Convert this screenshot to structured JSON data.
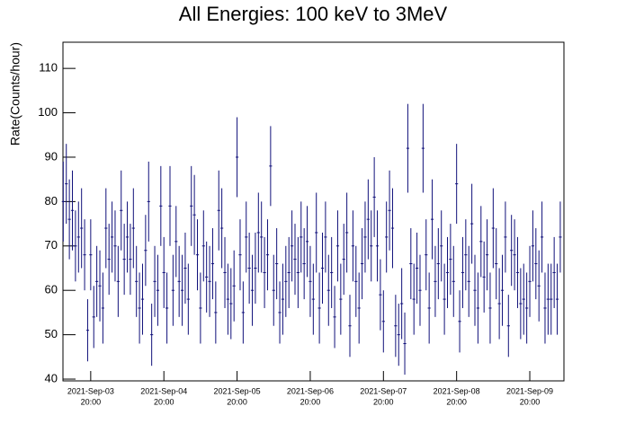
{
  "chart_data": {
    "type": "errorbar",
    "title": "All Energies:  100 keV to 3MeV",
    "ylabel": "Rate(Counts/hour)",
    "color": "#10107a",
    "x": [
      "2021-09-03 11:00",
      "2021-09-03 12:00",
      "2021-09-03 13:00",
      "2021-09-03 14:00",
      "2021-09-03 15:00",
      "2021-09-03 16:00",
      "2021-09-03 17:00",
      "2021-09-03 18:00",
      "2021-09-03 19:00",
      "2021-09-03 20:00",
      "2021-09-03 21:00",
      "2021-09-03 22:00",
      "2021-09-03 23:00",
      "2021-09-04 00:00",
      "2021-09-04 01:00",
      "2021-09-04 02:00",
      "2021-09-04 03:00",
      "2021-09-04 04:00",
      "2021-09-04 05:00",
      "2021-09-04 06:00",
      "2021-09-04 07:00",
      "2021-09-04 08:00",
      "2021-09-04 09:00",
      "2021-09-04 10:00",
      "2021-09-04 11:00",
      "2021-09-04 12:00",
      "2021-09-04 13:00",
      "2021-09-04 14:00",
      "2021-09-04 15:00",
      "2021-09-04 16:00",
      "2021-09-04 17:00",
      "2021-09-04 18:00",
      "2021-09-04 19:00",
      "2021-09-04 20:00",
      "2021-09-04 21:00",
      "2021-09-04 22:00",
      "2021-09-04 23:00",
      "2021-09-05 00:00",
      "2021-09-05 01:00",
      "2021-09-05 02:00",
      "2021-09-05 03:00",
      "2021-09-05 04:00",
      "2021-09-05 05:00",
      "2021-09-05 06:00",
      "2021-09-05 07:00",
      "2021-09-05 08:00",
      "2021-09-05 09:00",
      "2021-09-05 10:00",
      "2021-09-05 11:00",
      "2021-09-05 12:00",
      "2021-09-05 13:00",
      "2021-09-05 14:00",
      "2021-09-05 15:00",
      "2021-09-05 16:00",
      "2021-09-05 17:00",
      "2021-09-05 18:00",
      "2021-09-05 19:00",
      "2021-09-05 20:00",
      "2021-09-05 21:00",
      "2021-09-05 22:00",
      "2021-09-05 23:00",
      "2021-09-06 00:00",
      "2021-09-06 01:00",
      "2021-09-06 02:00",
      "2021-09-06 03:00",
      "2021-09-06 04:00",
      "2021-09-06 05:00",
      "2021-09-06 06:00",
      "2021-09-06 07:00",
      "2021-09-06 08:00",
      "2021-09-06 09:00",
      "2021-09-06 10:00",
      "2021-09-06 11:00",
      "2021-09-06 12:00",
      "2021-09-06 13:00",
      "2021-09-06 14:00",
      "2021-09-06 15:00",
      "2021-09-06 16:00",
      "2021-09-06 17:00",
      "2021-09-06 18:00",
      "2021-09-06 19:00",
      "2021-09-06 20:00",
      "2021-09-06 21:00",
      "2021-09-06 22:00",
      "2021-09-06 23:00",
      "2021-09-07 00:00",
      "2021-09-07 01:00",
      "2021-09-07 02:00",
      "2021-09-07 03:00",
      "2021-09-07 04:00",
      "2021-09-07 05:00",
      "2021-09-07 06:00",
      "2021-09-07 07:00",
      "2021-09-07 08:00",
      "2021-09-07 09:00",
      "2021-09-07 10:00",
      "2021-09-07 11:00",
      "2021-09-07 12:00",
      "2021-09-07 13:00",
      "2021-09-07 14:00",
      "2021-09-07 15:00",
      "2021-09-07 16:00",
      "2021-09-07 17:00",
      "2021-09-07 18:00",
      "2021-09-07 19:00",
      "2021-09-07 20:00",
      "2021-09-07 21:00",
      "2021-09-07 22:00",
      "2021-09-07 23:00",
      "2021-09-08 00:00",
      "2021-09-08 01:00",
      "2021-09-08 02:00",
      "2021-09-08 03:00",
      "2021-09-08 04:00",
      "2021-09-08 05:00",
      "2021-09-08 06:00",
      "2021-09-08 07:00",
      "2021-09-08 08:00",
      "2021-09-08 09:00",
      "2021-09-08 10:00",
      "2021-09-08 11:00",
      "2021-09-08 12:00",
      "2021-09-08 13:00",
      "2021-09-08 14:00",
      "2021-09-08 15:00",
      "2021-09-08 16:00",
      "2021-09-08 17:00",
      "2021-09-08 18:00",
      "2021-09-08 19:00",
      "2021-09-08 20:00",
      "2021-09-08 21:00",
      "2021-09-08 22:00",
      "2021-09-08 23:00",
      "2021-09-09 00:00",
      "2021-09-09 01:00",
      "2021-09-09 02:00",
      "2021-09-09 03:00",
      "2021-09-09 04:00",
      "2021-09-09 05:00",
      "2021-09-09 06:00",
      "2021-09-09 07:00",
      "2021-09-09 08:00",
      "2021-09-09 09:00",
      "2021-09-09 10:00",
      "2021-09-09 11:00",
      "2021-09-09 12:00",
      "2021-09-09 13:00",
      "2021-09-09 14:00",
      "2021-09-09 15:00",
      "2021-09-09 16:00",
      "2021-09-09 17:00",
      "2021-09-09 18:00",
      "2021-09-09 19:00",
      "2021-09-09 20:00",
      "2021-09-09 21:00",
      "2021-09-09 22:00",
      "2021-09-09 23:00",
      "2021-09-10 00:00",
      "2021-09-10 01:00",
      "2021-09-10 02:00",
      "2021-09-10 03:00",
      "2021-09-10 04:00",
      "2021-09-10 05:00",
      "2021-09-10 06:00"
    ],
    "values": [
      80,
      84,
      76,
      78,
      70,
      72,
      74,
      68,
      51,
      68,
      54,
      62,
      61,
      56,
      74,
      67,
      72,
      70,
      62,
      78,
      67,
      72,
      67,
      74,
      62,
      56,
      58,
      69,
      80,
      50,
      62,
      60,
      79,
      64,
      56,
      79,
      60,
      71,
      62,
      60,
      65,
      58,
      79,
      77,
      68,
      56,
      70,
      63,
      62,
      66,
      55,
      78,
      74,
      64,
      58,
      57,
      61,
      90,
      68,
      55,
      72,
      65,
      60,
      65,
      73,
      72,
      64,
      68,
      88,
      60,
      66,
      55,
      58,
      62,
      64,
      70,
      67,
      64,
      72,
      66,
      71,
      62,
      58,
      73,
      56,
      65,
      72,
      60,
      64,
      54,
      70,
      58,
      67,
      73,
      52,
      70,
      62,
      56,
      66,
      72,
      76,
      70,
      81,
      70,
      59,
      53,
      72,
      78,
      74,
      52,
      50,
      57,
      48,
      92,
      66,
      58,
      65,
      60,
      92,
      68,
      56,
      76,
      62,
      66,
      70,
      58,
      64,
      67,
      62,
      84,
      53,
      64,
      68,
      62,
      75,
      60,
      56,
      71,
      63,
      68,
      56,
      74,
      66,
      57,
      60,
      72,
      52,
      69,
      68,
      64,
      57,
      58,
      56,
      62,
      70,
      66,
      61,
      72,
      56,
      58,
      58,
      64,
      58,
      72
    ],
    "errors": [
      9,
      9,
      9,
      9,
      8,
      8,
      9,
      8,
      7,
      8,
      7,
      8,
      8,
      8,
      9,
      8,
      8,
      8,
      8,
      9,
      8,
      8,
      8,
      9,
      8,
      8,
      8,
      8,
      9,
      7,
      8,
      8,
      9,
      8,
      8,
      9,
      8,
      8,
      8,
      8,
      8,
      8,
      9,
      9,
      8,
      8,
      8,
      8,
      8,
      8,
      7,
      9,
      9,
      8,
      8,
      8,
      8,
      9,
      8,
      7,
      8,
      8,
      8,
      8,
      9,
      8,
      8,
      8,
      9,
      8,
      8,
      7,
      8,
      8,
      8,
      8,
      8,
      8,
      8,
      8,
      8,
      8,
      8,
      9,
      8,
      8,
      8,
      8,
      8,
      7,
      8,
      8,
      8,
      9,
      7,
      8,
      8,
      8,
      8,
      8,
      9,
      8,
      9,
      8,
      8,
      7,
      8,
      9,
      9,
      7,
      7,
      8,
      7,
      10,
      8,
      8,
      8,
      8,
      10,
      8,
      8,
      9,
      8,
      8,
      8,
      8,
      8,
      8,
      8,
      9,
      7,
      8,
      8,
      8,
      9,
      8,
      8,
      8,
      8,
      8,
      8,
      9,
      8,
      8,
      8,
      8,
      7,
      8,
      8,
      8,
      8,
      8,
      8,
      8,
      8,
      8,
      8,
      8,
      8,
      8,
      8,
      8,
      8,
      8
    ],
    "xlim": [
      "2021-09-03 10:54",
      "2021-09-10 07:12"
    ],
    "xticks": [
      {
        "value": "2021-09-03 20:00",
        "label": [
          "2021-Sep-03",
          "20:00"
        ]
      },
      {
        "value": "2021-09-04 20:00",
        "label": [
          "2021-Sep-04",
          "20:00"
        ]
      },
      {
        "value": "2021-09-05 20:00",
        "label": [
          "2021-Sep-05",
          "20:00"
        ]
      },
      {
        "value": "2021-09-06 20:00",
        "label": [
          "2021-Sep-06",
          "20:00"
        ]
      },
      {
        "value": "2021-09-07 20:00",
        "label": [
          "2021-Sep-07",
          "20:00"
        ]
      },
      {
        "value": "2021-09-08 20:00",
        "label": [
          "2021-Sep-08",
          "20:00"
        ]
      },
      {
        "value": "2021-09-09 20:00",
        "label": [
          "2021-Sep-09",
          "20:00"
        ]
      }
    ],
    "ylim": [
      39.6,
      115.9
    ],
    "yticks": [
      40,
      50,
      60,
      70,
      80,
      90,
      100,
      110
    ],
    "grid": false
  }
}
